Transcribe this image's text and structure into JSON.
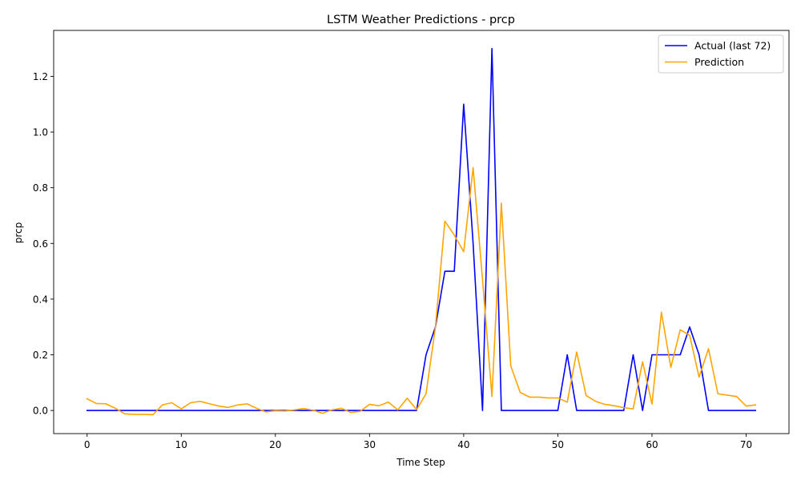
{
  "chart_data": {
    "type": "line",
    "title": "LSTM Weather Predictions - prcp",
    "xlabel": "Time Step",
    "ylabel": "prcp",
    "xlim": [
      -3.55,
      74.55
    ],
    "ylim": [
      -0.083,
      1.365
    ],
    "xticks": [
      0,
      10,
      20,
      30,
      40,
      50,
      60,
      70
    ],
    "yticks": [
      0.0,
      0.2,
      0.4,
      0.6,
      0.8,
      1.0,
      1.2
    ],
    "ytick_labels": [
      "0.0",
      "0.2",
      "0.4",
      "0.6",
      "0.8",
      "1.0",
      "1.2"
    ],
    "grid": false,
    "legend_position": "upper right",
    "x": [
      0,
      1,
      2,
      3,
      4,
      5,
      6,
      7,
      8,
      9,
      10,
      11,
      12,
      13,
      14,
      15,
      16,
      17,
      18,
      19,
      20,
      21,
      22,
      23,
      24,
      25,
      26,
      27,
      28,
      29,
      30,
      31,
      32,
      33,
      34,
      35,
      36,
      37,
      38,
      39,
      40,
      41,
      42,
      43,
      44,
      45,
      46,
      47,
      48,
      49,
      50,
      51,
      52,
      53,
      54,
      55,
      56,
      57,
      58,
      59,
      60,
      61,
      62,
      63,
      64,
      65,
      66,
      67,
      68,
      69,
      70,
      71
    ],
    "series": [
      {
        "name": "Actual (last 72)",
        "color": "#0000ff",
        "values": [
          0,
          0,
          0,
          0,
          0,
          0,
          0,
          0,
          0,
          0,
          0,
          0,
          0,
          0,
          0,
          0,
          0,
          0,
          0,
          0,
          0,
          0,
          0,
          0,
          0,
          0,
          0,
          0,
          0,
          0,
          0,
          0,
          0,
          0,
          0,
          0,
          0.2,
          0.3,
          0.5,
          0.5,
          1.1,
          0.6,
          0,
          1.3,
          0,
          0,
          0,
          0,
          0,
          0,
          0,
          0.2,
          0,
          0,
          0,
          0,
          0,
          0,
          0.2,
          0,
          0.2,
          0.2,
          0.2,
          0.2,
          0.3,
          0.2,
          0,
          0,
          0,
          0,
          0,
          0
        ]
      },
      {
        "name": "Prediction",
        "color": "#ffa500",
        "values": [
          0.042,
          0.025,
          0.024,
          0.008,
          -0.012,
          -0.014,
          -0.014,
          -0.015,
          0.02,
          0.028,
          0.006,
          0.028,
          0.033,
          0.024,
          0.016,
          0.011,
          0.02,
          0.024,
          0.008,
          -0.005,
          -0.001,
          -0.002,
          0.002,
          0.007,
          0.001,
          -0.01,
          0.002,
          0.008,
          -0.007,
          -0.003,
          0.022,
          0.017,
          0.03,
          0.002,
          0.044,
          0.003,
          0.06,
          0.3,
          0.68,
          0.63,
          0.57,
          0.872,
          0.47,
          0.05,
          0.745,
          0.16,
          0.065,
          0.048,
          0.048,
          0.045,
          0.045,
          0.03,
          0.21,
          0.054,
          0.033,
          0.022,
          0.017,
          0.01,
          0.006,
          0.175,
          0.023,
          0.353,
          0.155,
          0.29,
          0.27,
          0.12,
          0.222,
          0.06,
          0.055,
          0.05,
          0.016,
          0.02
        ]
      }
    ]
  }
}
